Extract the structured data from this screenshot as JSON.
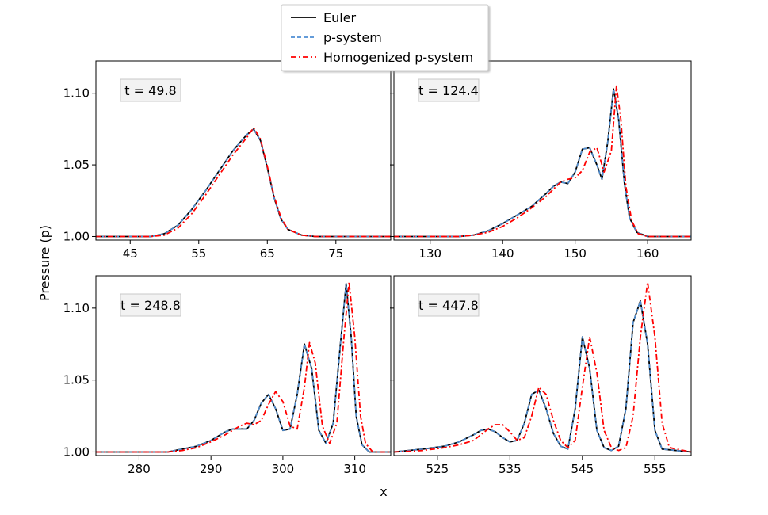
{
  "figure": {
    "ylabel": "Pressure (p)",
    "xlabel": "x"
  },
  "legend": {
    "placement": "top-center",
    "entries": [
      {
        "label": "Euler",
        "color": "#000000",
        "style": "solid"
      },
      {
        "label": "p-system",
        "color": "#4f8fd4",
        "style": "dashed"
      },
      {
        "label": "Homogenized p-system",
        "color": "#ff0000",
        "style": "dashdot"
      }
    ]
  },
  "chart_data": [
    {
      "type": "line",
      "panel_label": "t = 49.8",
      "xlim": [
        40,
        83
      ],
      "ylim": [
        0.9975,
        1.1225
      ],
      "xticks": [
        45,
        55,
        65,
        75
      ],
      "yticks": [
        1.0,
        1.05,
        1.1
      ],
      "yticklabels": [
        "1.00",
        "1.05",
        "1.10"
      ],
      "series": [
        {
          "name": "Euler",
          "x": [
            40,
            48,
            50,
            52,
            54,
            56,
            58,
            60,
            62,
            63,
            64,
            65,
            66,
            67,
            68,
            70,
            72,
            74,
            83
          ],
          "y": [
            1.0,
            1.0,
            1.002,
            1.008,
            1.019,
            1.032,
            1.046,
            1.06,
            1.071,
            1.075,
            1.067,
            1.048,
            1.027,
            1.012,
            1.005,
            1.001,
            1.0,
            1.0,
            1.0
          ]
        },
        {
          "name": "p-system",
          "x": [
            40,
            48,
            50,
            52,
            54,
            56,
            58,
            60,
            62,
            63,
            64,
            65,
            66,
            67,
            68,
            70,
            72,
            74,
            83
          ],
          "y": [
            1.0,
            1.0,
            1.002,
            1.008,
            1.019,
            1.032,
            1.046,
            1.06,
            1.071,
            1.075,
            1.067,
            1.048,
            1.027,
            1.012,
            1.005,
            1.001,
            1.0,
            1.0,
            1.0
          ]
        },
        {
          "name": "Homogenized p-system",
          "x": [
            40,
            48,
            50,
            52,
            54,
            56,
            58,
            60,
            62,
            63,
            64,
            65,
            66,
            67,
            68,
            70,
            72,
            74,
            83
          ],
          "y": [
            1.0,
            1.0,
            1.001,
            1.006,
            1.016,
            1.029,
            1.043,
            1.057,
            1.069,
            1.076,
            1.068,
            1.049,
            1.028,
            1.013,
            1.005,
            1.001,
            1.0,
            1.0,
            1.0
          ]
        }
      ]
    },
    {
      "type": "line",
      "panel_label": "t = 124.4",
      "xlim": [
        125,
        166
      ],
      "ylim": [
        0.9975,
        1.1225
      ],
      "xticks": [
        130,
        140,
        150,
        160
      ],
      "yticks": [
        1.0,
        1.05,
        1.1
      ],
      "yticklabels": [],
      "series": [
        {
          "name": "Euler",
          "x": [
            125,
            134,
            136,
            138,
            140,
            142,
            144,
            146,
            147,
            148,
            149,
            150,
            151,
            152,
            153,
            153.7,
            154.5,
            155.3,
            156,
            156.8,
            157.5,
            158.5,
            160,
            166
          ],
          "y": [
            1.0,
            1.0,
            1.001,
            1.004,
            1.009,
            1.015,
            1.021,
            1.03,
            1.035,
            1.038,
            1.037,
            1.045,
            1.061,
            1.062,
            1.05,
            1.04,
            1.066,
            1.103,
            1.082,
            1.037,
            1.013,
            1.003,
            1.0,
            1.0
          ]
        },
        {
          "name": "p-system",
          "x": [
            125,
            134,
            136,
            138,
            140,
            142,
            144,
            146,
            147,
            148,
            149,
            150,
            151,
            152,
            153,
            153.7,
            154.5,
            155.3,
            156,
            156.8,
            157.5,
            158.5,
            160,
            166
          ],
          "y": [
            1.0,
            1.0,
            1.001,
            1.004,
            1.009,
            1.015,
            1.021,
            1.03,
            1.035,
            1.038,
            1.037,
            1.045,
            1.061,
            1.062,
            1.05,
            1.04,
            1.066,
            1.103,
            1.082,
            1.037,
            1.013,
            1.003,
            1.0,
            1.0
          ]
        },
        {
          "name": "Homogenized p-system",
          "x": [
            125,
            134,
            136,
            138,
            140,
            142,
            144,
            146,
            147,
            148,
            149,
            150,
            151,
            152,
            153,
            154,
            155,
            155.7,
            156.3,
            157,
            157.8,
            158.7,
            160,
            166
          ],
          "y": [
            1.0,
            1.0,
            1.001,
            1.003,
            1.007,
            1.013,
            1.02,
            1.028,
            1.033,
            1.038,
            1.04,
            1.041,
            1.046,
            1.059,
            1.062,
            1.045,
            1.06,
            1.105,
            1.082,
            1.035,
            1.011,
            1.002,
            1.0,
            1.0
          ]
        }
      ]
    },
    {
      "type": "line",
      "panel_label": "t = 248.8",
      "xlim": [
        274,
        315
      ],
      "ylim": [
        0.9975,
        1.1225
      ],
      "xticks": [
        280,
        290,
        300,
        310
      ],
      "yticks": [
        1.0,
        1.05,
        1.1
      ],
      "yticklabels": [
        "1.00",
        "1.05",
        "1.10"
      ],
      "series": [
        {
          "name": "Euler",
          "x": [
            274,
            284,
            286,
            288,
            290,
            292,
            293,
            294,
            295,
            296,
            297,
            298,
            299,
            300,
            301,
            302,
            303,
            304,
            305,
            306,
            307,
            308,
            308.8,
            309.5,
            310.2,
            311,
            312,
            315
          ],
          "y": [
            1.0,
            1.0,
            1.002,
            1.004,
            1.008,
            1.014,
            1.016,
            1.016,
            1.016,
            1.022,
            1.034,
            1.04,
            1.03,
            1.015,
            1.016,
            1.04,
            1.075,
            1.058,
            1.015,
            1.006,
            1.02,
            1.075,
            1.117,
            1.08,
            1.025,
            1.005,
            1.0,
            1.0
          ]
        },
        {
          "name": "p-system",
          "x": [
            274,
            284,
            286,
            288,
            290,
            292,
            293,
            294,
            295,
            296,
            297,
            298,
            299,
            300,
            301,
            302,
            303,
            304,
            305,
            306,
            307,
            308,
            308.8,
            309.5,
            310.2,
            311,
            312,
            315
          ],
          "y": [
            1.0,
            1.0,
            1.002,
            1.004,
            1.008,
            1.014,
            1.016,
            1.016,
            1.016,
            1.022,
            1.034,
            1.04,
            1.03,
            1.015,
            1.016,
            1.04,
            1.075,
            1.058,
            1.015,
            1.006,
            1.02,
            1.075,
            1.117,
            1.08,
            1.025,
            1.005,
            1.0,
            1.0
          ]
        },
        {
          "name": "Homogenized p-system",
          "x": [
            274,
            284,
            286,
            288,
            290,
            292,
            294,
            295,
            296,
            297,
            298,
            299,
            300,
            301,
            302,
            303,
            303.7,
            304.5,
            305.5,
            306.5,
            307.5,
            308.5,
            309.2,
            310,
            310.8,
            311.5,
            312.5,
            315
          ],
          "y": [
            1.0,
            1.0,
            1.001,
            1.003,
            1.007,
            1.012,
            1.018,
            1.02,
            1.019,
            1.022,
            1.033,
            1.042,
            1.035,
            1.018,
            1.016,
            1.045,
            1.076,
            1.062,
            1.018,
            1.006,
            1.02,
            1.08,
            1.118,
            1.08,
            1.025,
            1.006,
            1.0,
            1.0
          ]
        }
      ]
    },
    {
      "type": "line",
      "panel_label": "t = 447.8",
      "xlim": [
        519,
        560
      ],
      "ylim": [
        0.9975,
        1.1225
      ],
      "xticks": [
        525,
        535,
        545,
        555
      ],
      "yticks": [
        1.0,
        1.05,
        1.1
      ],
      "yticklabels": [],
      "series": [
        {
          "name": "Euler",
          "x": [
            519,
            523,
            526,
            528,
            530,
            531,
            532,
            533,
            534,
            535,
            536,
            537,
            538,
            539,
            540,
            541,
            542,
            543,
            544,
            545,
            546,
            547,
            548,
            549,
            550,
            551,
            552,
            553,
            554,
            555,
            556,
            560
          ],
          "y": [
            1.0,
            1.002,
            1.004,
            1.007,
            1.012,
            1.015,
            1.016,
            1.014,
            1.01,
            1.007,
            1.008,
            1.02,
            1.04,
            1.043,
            1.03,
            1.013,
            1.004,
            1.002,
            1.03,
            1.08,
            1.058,
            1.015,
            1.003,
            1.001,
            1.004,
            1.03,
            1.09,
            1.105,
            1.075,
            1.015,
            1.002,
            1.0
          ]
        },
        {
          "name": "p-system",
          "x": [
            519,
            523,
            526,
            528,
            530,
            531,
            532,
            533,
            534,
            535,
            536,
            537,
            538,
            539,
            540,
            541,
            542,
            543,
            544,
            545,
            546,
            547,
            548,
            549,
            550,
            551,
            552,
            553,
            554,
            555,
            556,
            560
          ],
          "y": [
            1.0,
            1.002,
            1.004,
            1.007,
            1.012,
            1.015,
            1.016,
            1.014,
            1.01,
            1.007,
            1.008,
            1.02,
            1.04,
            1.043,
            1.03,
            1.013,
            1.004,
            1.002,
            1.03,
            1.08,
            1.058,
            1.015,
            1.003,
            1.001,
            1.004,
            1.03,
            1.09,
            1.105,
            1.075,
            1.015,
            1.002,
            1.0
          ]
        },
        {
          "name": "Homogenized p-system",
          "x": [
            519,
            523,
            526,
            528,
            530,
            532,
            533,
            534,
            535,
            536,
            537,
            538,
            539,
            540,
            541,
            542,
            543,
            544,
            545,
            546,
            547,
            548,
            549,
            550,
            551,
            552,
            553,
            554,
            555,
            556,
            557,
            560
          ],
          "y": [
            1.0,
            1.001,
            1.003,
            1.005,
            1.008,
            1.016,
            1.019,
            1.019,
            1.014,
            1.008,
            1.01,
            1.025,
            1.045,
            1.04,
            1.022,
            1.008,
            1.003,
            1.008,
            1.045,
            1.08,
            1.055,
            1.015,
            1.003,
            1.001,
            1.003,
            1.025,
            1.08,
            1.118,
            1.08,
            1.02,
            1.003,
            1.0
          ]
        }
      ]
    }
  ]
}
